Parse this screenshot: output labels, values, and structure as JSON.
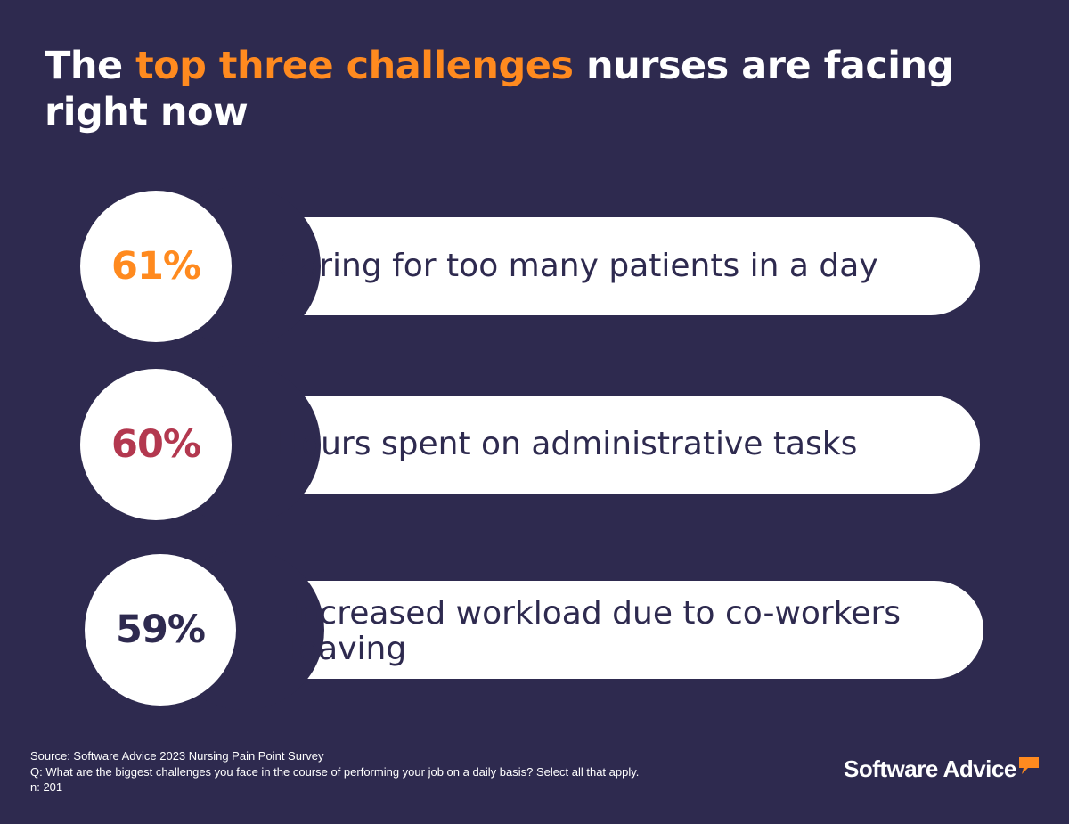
{
  "title": {
    "before": "The ",
    "highlight": "top three challenges",
    "after": " nurses are facing right now"
  },
  "chart_data": {
    "type": "bar",
    "title": "The top three challenges nurses are facing right now",
    "unit": "%",
    "categories": [
      "Caring for too many patients in a day",
      "Hours spent on administrative tasks",
      "Increased workload due to co-workers leaving"
    ],
    "values": [
      61,
      60,
      59
    ],
    "value_labels": [
      "61%",
      "60%",
      "59%"
    ],
    "value_colors": [
      "#ff8a1f",
      "#b3384f",
      "#2e2a4f"
    ]
  },
  "colors": {
    "background": "#2e2a4f",
    "highlight": "#ff8a1f",
    "text_dark": "#2e2a4f",
    "panel": "#ffffff"
  },
  "footer": {
    "source": "Source: Software Advice 2023 Nursing Pain Point Survey",
    "question": "Q: What are the biggest challenges you face in the course of performing your job on a daily basis? Select all that apply.",
    "n": "n: 201"
  },
  "logo": {
    "text": "Software Advice",
    "icon": "speech-bubble-icon",
    "icon_color": "#ff8a1f"
  }
}
